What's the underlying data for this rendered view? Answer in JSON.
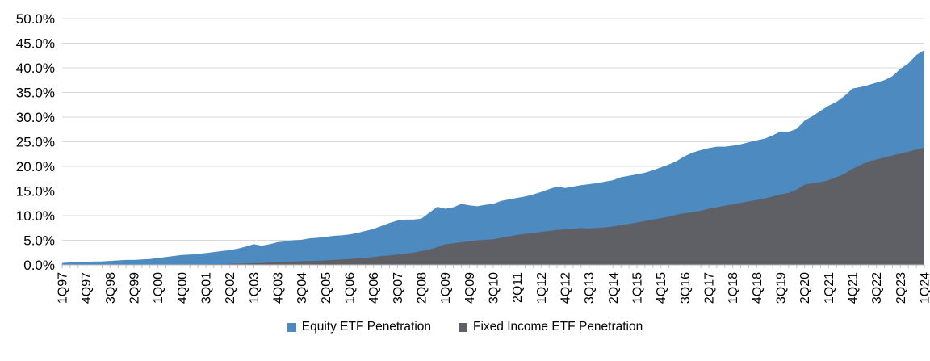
{
  "chart_data": {
    "type": "area",
    "title": "",
    "x_tick_every": 3,
    "ylim": [
      0,
      50
    ],
    "y_tick_labels": [
      "0.0%",
      "5.0%",
      "10.0%",
      "15.0%",
      "20.0%",
      "25.0%",
      "30.0%",
      "35.0%",
      "40.0%",
      "45.0%",
      "50.0%"
    ],
    "grid": "horizontal",
    "legend_position": "bottom-center",
    "axis_color": "#BFBFBF",
    "gridline_color": "#D9D9D9",
    "label_color": "#000000",
    "categories": [
      "1Q97",
      "2Q97",
      "3Q97",
      "4Q97",
      "1Q98",
      "2Q98",
      "3Q98",
      "4Q98",
      "1Q99",
      "2Q99",
      "3Q99",
      "4Q99",
      "1Q00",
      "2Q00",
      "3Q00",
      "4Q00",
      "1Q01",
      "2Q01",
      "3Q01",
      "4Q01",
      "1Q02",
      "2Q02",
      "3Q02",
      "4Q02",
      "1Q03",
      "2Q03",
      "3Q03",
      "4Q03",
      "1Q04",
      "2Q04",
      "3Q04",
      "4Q04",
      "1Q05",
      "2Q05",
      "3Q05",
      "4Q05",
      "1Q06",
      "2Q06",
      "3Q06",
      "4Q06",
      "1Q07",
      "2Q07",
      "3Q07",
      "4Q07",
      "1Q08",
      "2Q08",
      "3Q08",
      "4Q08",
      "1Q09",
      "2Q09",
      "3Q09",
      "4Q09",
      "1Q10",
      "2Q10",
      "3Q10",
      "4Q10",
      "1Q11",
      "2Q11",
      "3Q11",
      "4Q11",
      "1Q12",
      "2Q12",
      "3Q12",
      "4Q12",
      "1Q13",
      "2Q13",
      "3Q13",
      "4Q13",
      "1Q14",
      "2Q14",
      "3Q14",
      "4Q14",
      "1Q15",
      "2Q15",
      "3Q15",
      "4Q15",
      "1Q16",
      "2Q16",
      "3Q16",
      "4Q16",
      "1Q17",
      "2Q17",
      "3Q17",
      "4Q17",
      "1Q18",
      "2Q18",
      "3Q18",
      "4Q18",
      "1Q19",
      "2Q19",
      "3Q19",
      "4Q19",
      "1Q20",
      "2Q20",
      "3Q20",
      "4Q20",
      "1Q21",
      "2Q21",
      "3Q21",
      "4Q21",
      "1Q22",
      "2Q22",
      "3Q22",
      "4Q22",
      "1Q23",
      "2Q23",
      "3Q23",
      "4Q23",
      "1Q24"
    ],
    "series": [
      {
        "name": "Equity ETF Penetration",
        "color": "#4D8AC0",
        "values": [
          0.4,
          0.5,
          0.5,
          0.6,
          0.7,
          0.7,
          0.8,
          0.9,
          1.0,
          1.0,
          1.1,
          1.2,
          1.4,
          1.6,
          1.8,
          2.0,
          2.1,
          2.2,
          2.4,
          2.6,
          2.8,
          3.0,
          3.3,
          3.7,
          4.2,
          3.9,
          4.2,
          4.6,
          4.8,
          5.0,
          5.1,
          5.4,
          5.5,
          5.7,
          5.9,
          6.0,
          6.2,
          6.5,
          6.9,
          7.3,
          7.9,
          8.5,
          9.0,
          9.2,
          9.2,
          9.4,
          10.6,
          11.8,
          11.4,
          11.7,
          12.4,
          12.1,
          11.9,
          12.2,
          12.4,
          13.0,
          13.3,
          13.6,
          13.9,
          14.3,
          14.8,
          15.4,
          15.9,
          15.6,
          15.9,
          16.2,
          16.4,
          16.6,
          16.9,
          17.2,
          17.8,
          18.1,
          18.4,
          18.7,
          19.2,
          19.8,
          20.4,
          21.1,
          22.1,
          22.8,
          23.3,
          23.7,
          24.0,
          24.0,
          24.2,
          24.5,
          24.9,
          25.3,
          25.6,
          26.3,
          27.1,
          27.0,
          27.6,
          29.3,
          30.2,
          31.3,
          32.3,
          33.1,
          34.3,
          35.8,
          36.1,
          36.5,
          37.0,
          37.5,
          38.3,
          39.8,
          40.9,
          42.6,
          43.6
        ]
      },
      {
        "name": "Fixed Income ETF Penetration",
        "color": "#5F6066",
        "values": [
          0,
          0,
          0,
          0,
          0,
          0,
          0,
          0,
          0,
          0,
          0.05,
          0.05,
          0.05,
          0.05,
          0.1,
          0.1,
          0.1,
          0.1,
          0.1,
          0.15,
          0.15,
          0.2,
          0.25,
          0.3,
          0.35,
          0.4,
          0.5,
          0.6,
          0.65,
          0.7,
          0.75,
          0.8,
          0.85,
          0.9,
          1.0,
          1.1,
          1.2,
          1.3,
          1.45,
          1.6,
          1.8,
          1.9,
          2.1,
          2.3,
          2.5,
          2.8,
          3.1,
          3.6,
          4.2,
          4.4,
          4.6,
          4.8,
          5.0,
          5.1,
          5.2,
          5.5,
          5.8,
          6.1,
          6.3,
          6.5,
          6.7,
          6.9,
          7.1,
          7.2,
          7.3,
          7.5,
          7.4,
          7.5,
          7.6,
          7.8,
          8.1,
          8.3,
          8.6,
          8.9,
          9.2,
          9.5,
          9.8,
          10.2,
          10.5,
          10.7,
          11.0,
          11.4,
          11.7,
          12.0,
          12.3,
          12.6,
          12.9,
          13.2,
          13.5,
          13.9,
          14.3,
          14.6,
          15.3,
          16.3,
          16.6,
          16.8,
          17.2,
          17.8,
          18.5,
          19.5,
          20.3,
          21.0,
          21.4,
          21.8,
          22.2,
          22.6,
          23.0,
          23.4,
          23.8
        ]
      }
    ]
  }
}
